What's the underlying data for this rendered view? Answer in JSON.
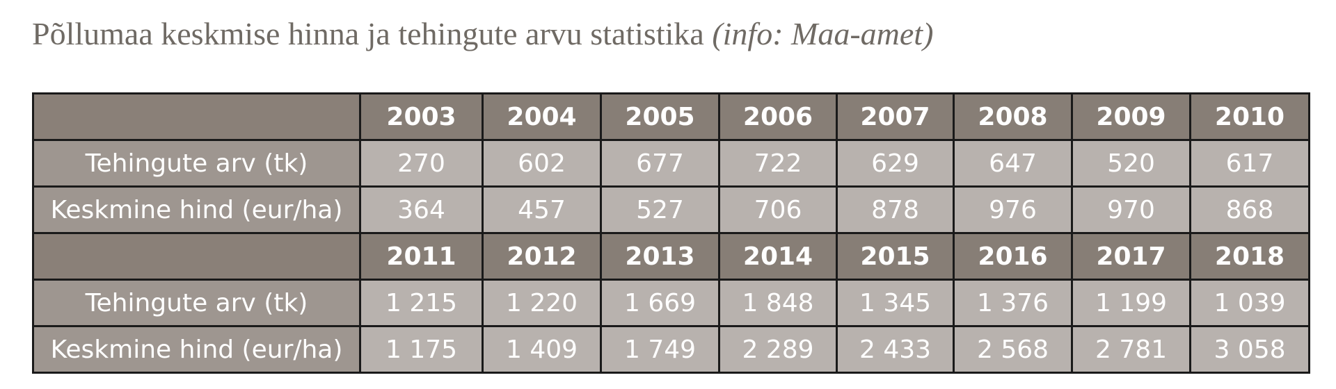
{
  "title": {
    "main": "Põllumaa keskmise hinna ja tehingute arvu statistika",
    "source": "(info: Maa-amet)"
  },
  "chart_data": {
    "type": "table",
    "blocks": [
      {
        "years": [
          "2003",
          "2004",
          "2005",
          "2006",
          "2007",
          "2008",
          "2009",
          "2010"
        ],
        "rows": [
          {
            "label": "Tehingute arv (tk)",
            "values": [
              "270",
              "602",
              "677",
              "722",
              "629",
              "647",
              "520",
              "617"
            ]
          },
          {
            "label": "Keskmine hind (eur/ha)",
            "values": [
              "364",
              "457",
              "527",
              "706",
              "878",
              "976",
              "970",
              "868"
            ]
          }
        ]
      },
      {
        "years": [
          "2011",
          "2012",
          "2013",
          "2014",
          "2015",
          "2016",
          "2017",
          "2018"
        ],
        "rows": [
          {
            "label": "Tehingute arv (tk)",
            "values": [
              "1 215",
              "1 220",
              "1 669",
              "1 848",
              "1 345",
              "1 376",
              "1 199",
              "1 039"
            ]
          },
          {
            "label": "Keskmine hind (eur/ha)",
            "values": [
              "1 175",
              "1 409",
              "1 749",
              "2 289",
              "2 433",
              "2 568",
              "2 781",
              "3 058"
            ]
          }
        ]
      }
    ]
  }
}
